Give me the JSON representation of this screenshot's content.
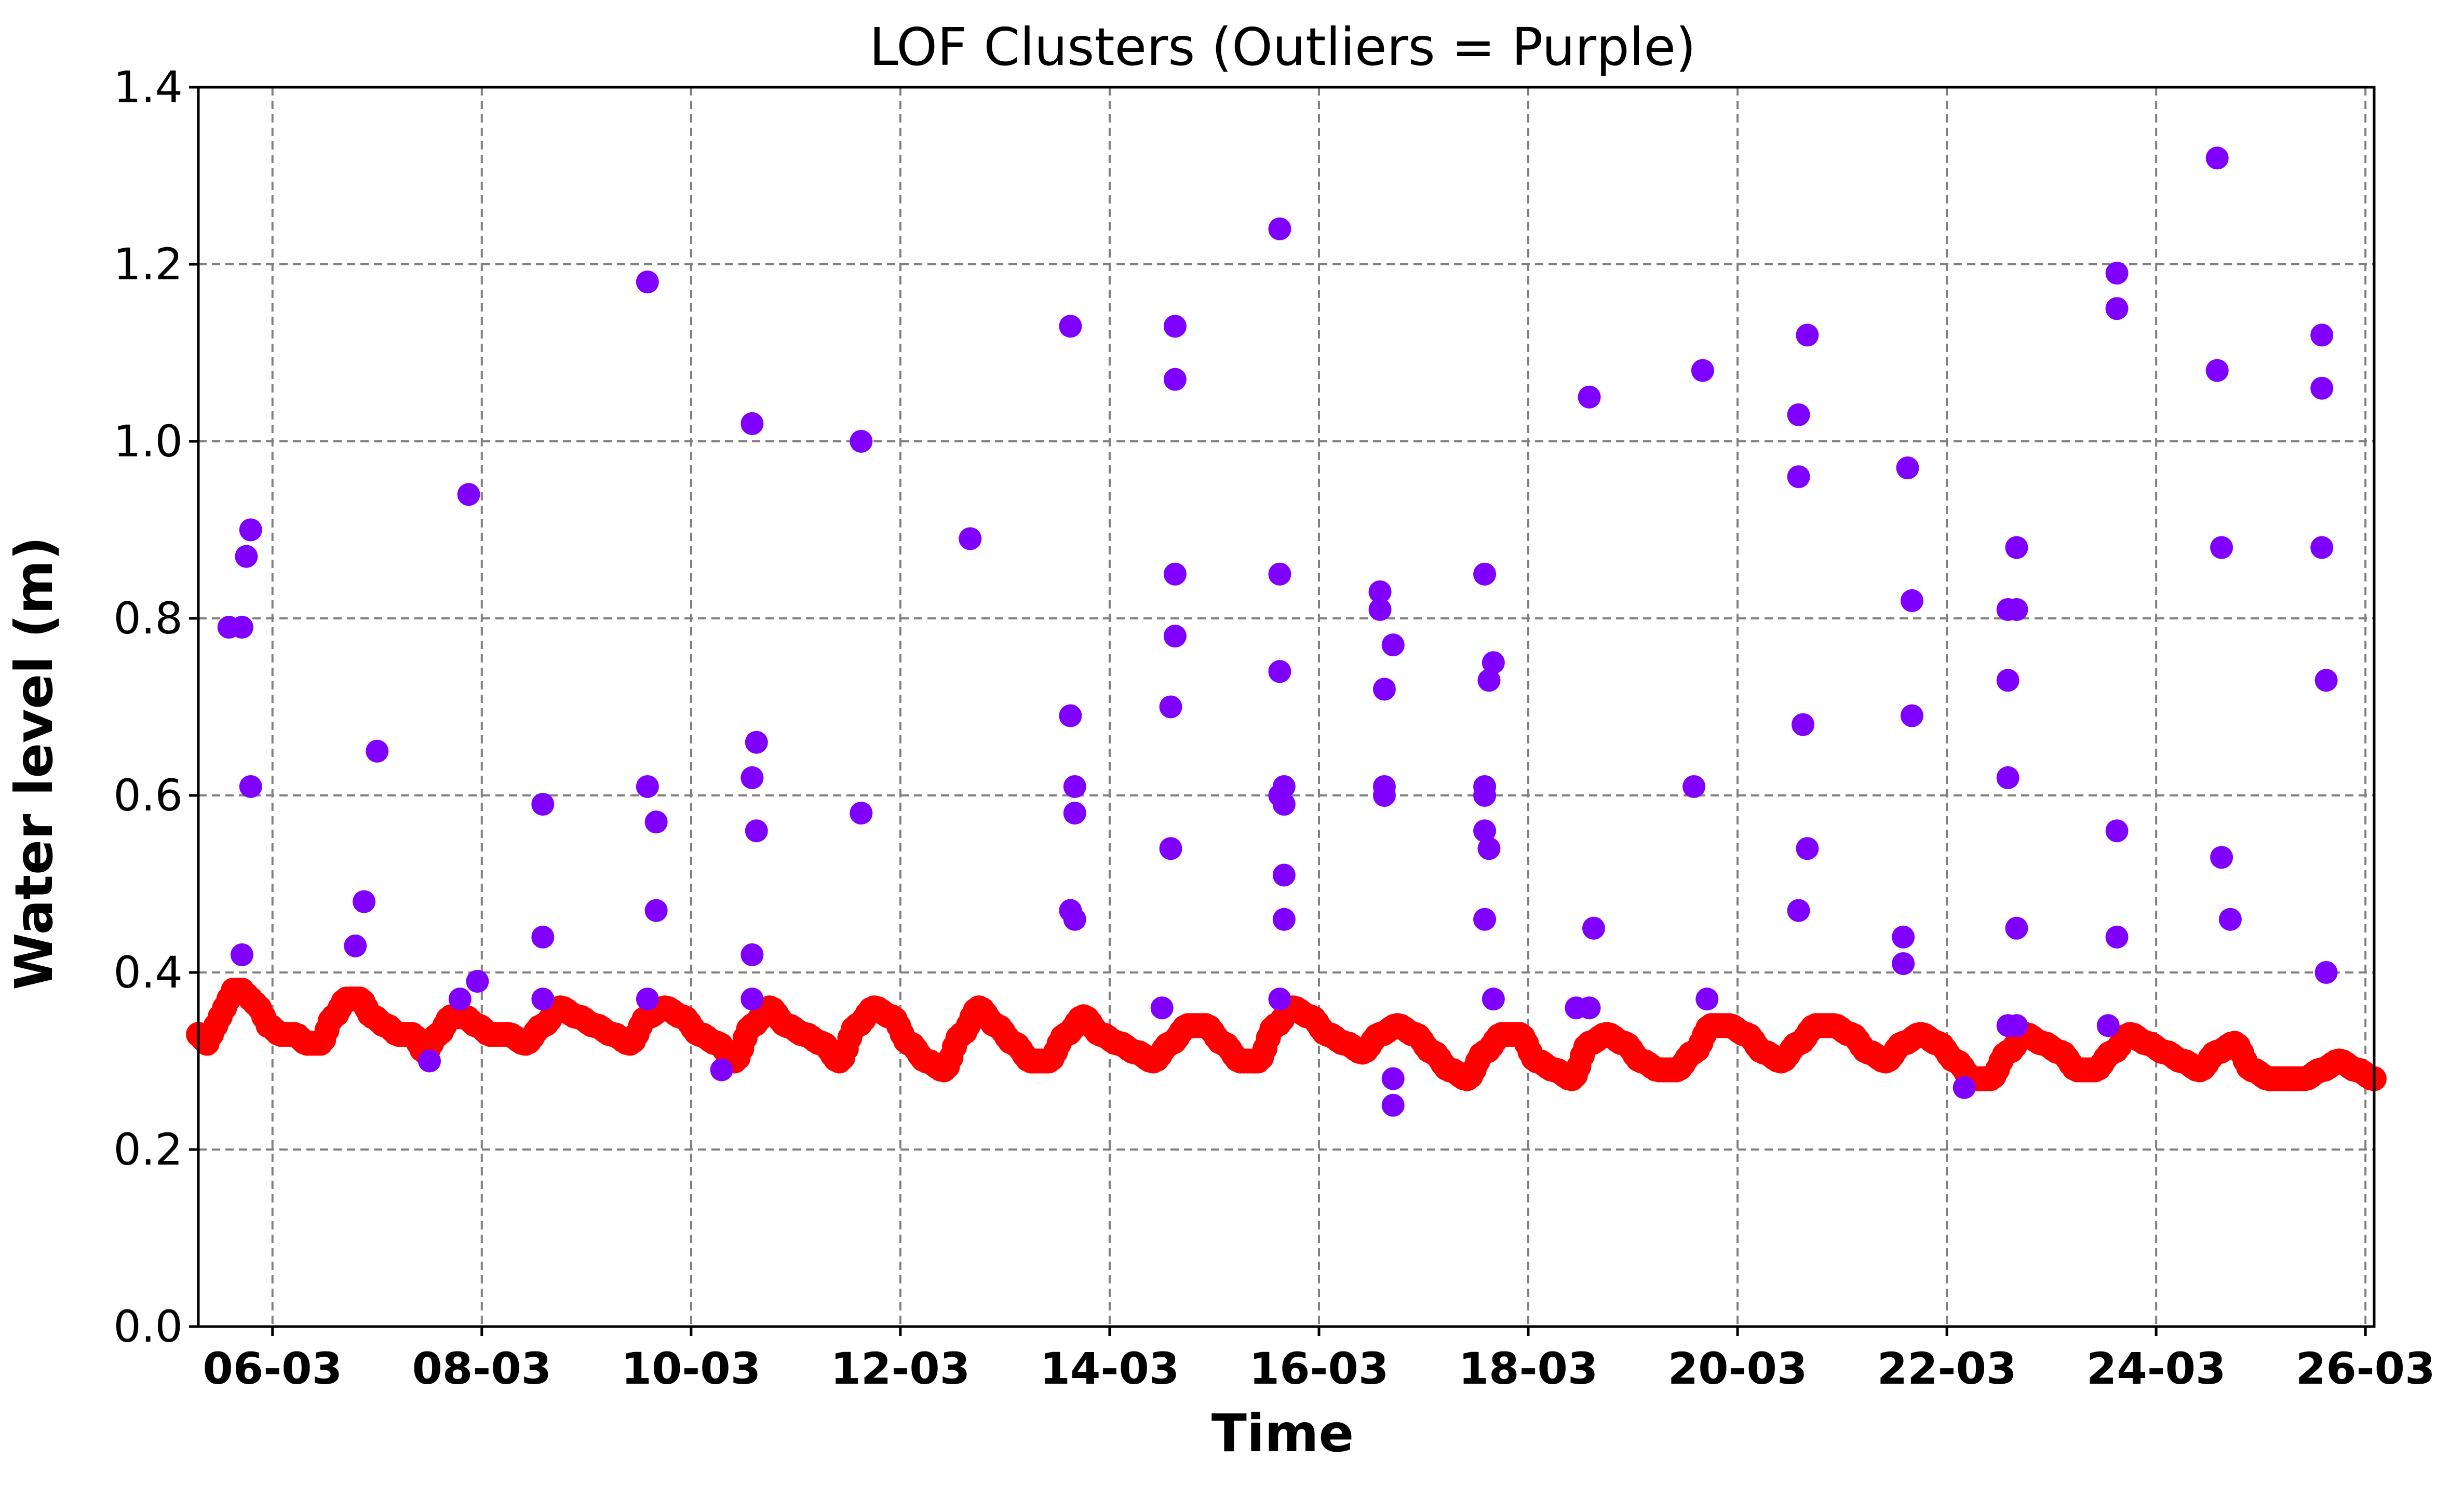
{
  "chart_data": {
    "type": "scatter",
    "title": "LOF Clusters (Outliers = Purple)",
    "xlabel": "Time",
    "ylabel": "Water level (m)",
    "x_type": "date",
    "xlim": [
      "2025-03-05T07:00",
      "2025-03-26T02:00"
    ],
    "ylim": [
      0.0,
      1.4
    ],
    "yticks": [
      "0.0",
      "0.2",
      "0.4",
      "0.6",
      "0.8",
      "1.0",
      "1.2",
      "1.4"
    ],
    "xticks": [
      {
        "date": "2025-03-06",
        "label": "06-03"
      },
      {
        "date": "2025-03-08",
        "label": "08-03"
      },
      {
        "date": "2025-03-10",
        "label": "10-03"
      },
      {
        "date": "2025-03-12",
        "label": "12-03"
      },
      {
        "date": "2025-03-14",
        "label": "14-03"
      },
      {
        "date": "2025-03-16",
        "label": "16-03"
      },
      {
        "date": "2025-03-18",
        "label": "18-03"
      },
      {
        "date": "2025-03-20",
        "label": "20-03"
      },
      {
        "date": "2025-03-22",
        "label": "22-03"
      },
      {
        "date": "2025-03-24",
        "label": "24-03"
      },
      {
        "date": "2025-03-26",
        "label": "26-03"
      }
    ],
    "grid": true,
    "colors": {
      "inliers": "#ff0000",
      "outliers": "#7f00ff"
    },
    "series": [
      {
        "role": "inliers",
        "points": [
          [
            "2025-03-05T07:00",
            0.33
          ],
          [
            "2025-03-05T09:00",
            0.32
          ],
          [
            "2025-03-05T11:00",
            0.34
          ],
          [
            "2025-03-05T13:00",
            0.36
          ],
          [
            "2025-03-05T15:00",
            0.38
          ],
          [
            "2025-03-05T17:00",
            0.38
          ],
          [
            "2025-03-05T19:00",
            0.37
          ],
          [
            "2025-03-05T21:00",
            0.36
          ],
          [
            "2025-03-05T23:00",
            0.34
          ],
          [
            "2025-03-06T02:00",
            0.33
          ],
          [
            "2025-03-06T05:00",
            0.33
          ],
          [
            "2025-03-06T08:00",
            0.32
          ],
          [
            "2025-03-06T11:00",
            0.32
          ],
          [
            "2025-03-06T14:00",
            0.35
          ],
          [
            "2025-03-06T17:00",
            0.37
          ],
          [
            "2025-03-06T20:00",
            0.37
          ],
          [
            "2025-03-06T23:00",
            0.35
          ],
          [
            "2025-03-07T02:00",
            0.34
          ],
          [
            "2025-03-07T05:00",
            0.33
          ],
          [
            "2025-03-07T08:00",
            0.33
          ],
          [
            "2025-03-07T11:00",
            0.31
          ],
          [
            "2025-03-07T14:00",
            0.33
          ],
          [
            "2025-03-07T17:00",
            0.35
          ],
          [
            "2025-03-07T20:00",
            0.35
          ],
          [
            "2025-03-07T23:00",
            0.34
          ],
          [
            "2025-03-08T02:00",
            0.33
          ],
          [
            "2025-03-08T06:00",
            0.33
          ],
          [
            "2025-03-08T10:00",
            0.32
          ],
          [
            "2025-03-08T14:00",
            0.34
          ],
          [
            "2025-03-08T18:00",
            0.36
          ],
          [
            "2025-03-08T22:00",
            0.35
          ],
          [
            "2025-03-09T02:00",
            0.34
          ],
          [
            "2025-03-09T06:00",
            0.33
          ],
          [
            "2025-03-09T10:00",
            0.32
          ],
          [
            "2025-03-09T14:00",
            0.35
          ],
          [
            "2025-03-09T18:00",
            0.36
          ],
          [
            "2025-03-09T22:00",
            0.35
          ],
          [
            "2025-03-10T02:00",
            0.33
          ],
          [
            "2025-03-10T06:00",
            0.32
          ],
          [
            "2025-03-10T10:00",
            0.3
          ],
          [
            "2025-03-10T14:00",
            0.34
          ],
          [
            "2025-03-10T18:00",
            0.36
          ],
          [
            "2025-03-10T22:00",
            0.34
          ],
          [
            "2025-03-11T02:00",
            0.33
          ],
          [
            "2025-03-11T06:00",
            0.32
          ],
          [
            "2025-03-11T10:00",
            0.3
          ],
          [
            "2025-03-11T14:00",
            0.34
          ],
          [
            "2025-03-11T18:00",
            0.36
          ],
          [
            "2025-03-11T22:00",
            0.35
          ],
          [
            "2025-03-12T02:00",
            0.32
          ],
          [
            "2025-03-12T06:00",
            0.3
          ],
          [
            "2025-03-12T10:00",
            0.29
          ],
          [
            "2025-03-12T14:00",
            0.33
          ],
          [
            "2025-03-12T18:00",
            0.36
          ],
          [
            "2025-03-12T22:00",
            0.34
          ],
          [
            "2025-03-13T02:00",
            0.32
          ],
          [
            "2025-03-13T06:00",
            0.3
          ],
          [
            "2025-03-13T10:00",
            0.3
          ],
          [
            "2025-03-13T14:00",
            0.33
          ],
          [
            "2025-03-13T18:00",
            0.35
          ],
          [
            "2025-03-13T22:00",
            0.33
          ],
          [
            "2025-03-14T02:00",
            0.32
          ],
          [
            "2025-03-14T06:00",
            0.31
          ],
          [
            "2025-03-14T10:00",
            0.3
          ],
          [
            "2025-03-14T14:00",
            0.32
          ],
          [
            "2025-03-14T18:00",
            0.34
          ],
          [
            "2025-03-14T22:00",
            0.34
          ],
          [
            "2025-03-15T02:00",
            0.32
          ],
          [
            "2025-03-15T06:00",
            0.3
          ],
          [
            "2025-03-15T10:00",
            0.3
          ],
          [
            "2025-03-15T14:00",
            0.34
          ],
          [
            "2025-03-15T18:00",
            0.36
          ],
          [
            "2025-03-15T22:00",
            0.35
          ],
          [
            "2025-03-16T02:00",
            0.33
          ],
          [
            "2025-03-16T06:00",
            0.32
          ],
          [
            "2025-03-16T10:00",
            0.31
          ],
          [
            "2025-03-16T14:00",
            0.33
          ],
          [
            "2025-03-16T18:00",
            0.34
          ],
          [
            "2025-03-16T22:00",
            0.33
          ],
          [
            "2025-03-17T02:00",
            0.31
          ],
          [
            "2025-03-17T06:00",
            0.29
          ],
          [
            "2025-03-17T10:00",
            0.28
          ],
          [
            "2025-03-17T14:00",
            0.31
          ],
          [
            "2025-03-17T18:00",
            0.33
          ],
          [
            "2025-03-17T22:00",
            0.33
          ],
          [
            "2025-03-18T02:00",
            0.3
          ],
          [
            "2025-03-18T06:00",
            0.29
          ],
          [
            "2025-03-18T10:00",
            0.28
          ],
          [
            "2025-03-18T14:00",
            0.32
          ],
          [
            "2025-03-18T18:00",
            0.33
          ],
          [
            "2025-03-18T22:00",
            0.32
          ],
          [
            "2025-03-19T02:00",
            0.3
          ],
          [
            "2025-03-19T06:00",
            0.29
          ],
          [
            "2025-03-19T10:00",
            0.29
          ],
          [
            "2025-03-19T14:00",
            0.31
          ],
          [
            "2025-03-19T18:00",
            0.34
          ],
          [
            "2025-03-19T22:00",
            0.34
          ],
          [
            "2025-03-20T02:00",
            0.33
          ],
          [
            "2025-03-20T06:00",
            0.31
          ],
          [
            "2025-03-20T10:00",
            0.3
          ],
          [
            "2025-03-20T14:00",
            0.32
          ],
          [
            "2025-03-20T18:00",
            0.34
          ],
          [
            "2025-03-20T22:00",
            0.34
          ],
          [
            "2025-03-21T02:00",
            0.33
          ],
          [
            "2025-03-21T06:00",
            0.31
          ],
          [
            "2025-03-21T10:00",
            0.3
          ],
          [
            "2025-03-21T14:00",
            0.32
          ],
          [
            "2025-03-21T18:00",
            0.33
          ],
          [
            "2025-03-21T22:00",
            0.32
          ],
          [
            "2025-03-22T02:00",
            0.3
          ],
          [
            "2025-03-22T06:00",
            0.28
          ],
          [
            "2025-03-22T10:00",
            0.28
          ],
          [
            "2025-03-22T14:00",
            0.31
          ],
          [
            "2025-03-22T18:00",
            0.33
          ],
          [
            "2025-03-22T22:00",
            0.32
          ],
          [
            "2025-03-23T02:00",
            0.31
          ],
          [
            "2025-03-23T06:00",
            0.29
          ],
          [
            "2025-03-23T10:00",
            0.29
          ],
          [
            "2025-03-23T14:00",
            0.31
          ],
          [
            "2025-03-23T18:00",
            0.33
          ],
          [
            "2025-03-23T22:00",
            0.32
          ],
          [
            "2025-03-24T02:00",
            0.31
          ],
          [
            "2025-03-24T06:00",
            0.3
          ],
          [
            "2025-03-24T10:00",
            0.29
          ],
          [
            "2025-03-24T14:00",
            0.31
          ],
          [
            "2025-03-24T18:00",
            0.32
          ],
          [
            "2025-03-24T22:00",
            0.29
          ],
          [
            "2025-03-25T02:00",
            0.28
          ],
          [
            "2025-03-25T06:00",
            0.28
          ],
          [
            "2025-03-25T10:00",
            0.28
          ],
          [
            "2025-03-25T14:00",
            0.29
          ],
          [
            "2025-03-25T18:00",
            0.3
          ],
          [
            "2025-03-25T22:00",
            0.29
          ],
          [
            "2025-03-26T02:00",
            0.28
          ]
        ]
      },
      {
        "role": "outliers",
        "points": [
          [
            "2025-03-05T14:00",
            0.79
          ],
          [
            "2025-03-05T17:00",
            0.79
          ],
          [
            "2025-03-05T17:00",
            0.42
          ],
          [
            "2025-03-05T18:00",
            0.87
          ],
          [
            "2025-03-05T19:00",
            0.9
          ],
          [
            "2025-03-05T19:00",
            0.61
          ],
          [
            "2025-03-06T19:00",
            0.43
          ],
          [
            "2025-03-06T21:00",
            0.48
          ],
          [
            "2025-03-07T00:00",
            0.65
          ],
          [
            "2025-03-07T12:00",
            0.3
          ],
          [
            "2025-03-07T19:00",
            0.37
          ],
          [
            "2025-03-07T21:00",
            0.94
          ],
          [
            "2025-03-07T23:00",
            0.39
          ],
          [
            "2025-03-08T14:00",
            0.59
          ],
          [
            "2025-03-08T14:00",
            0.44
          ],
          [
            "2025-03-08T14:00",
            0.37
          ],
          [
            "2025-03-09T14:00",
            1.18
          ],
          [
            "2025-03-09T14:00",
            0.61
          ],
          [
            "2025-03-09T14:00",
            0.37
          ],
          [
            "2025-03-09T16:00",
            0.57
          ],
          [
            "2025-03-09T16:00",
            0.47
          ],
          [
            "2025-03-10T07:00",
            0.29
          ],
          [
            "2025-03-10T14:00",
            1.02
          ],
          [
            "2025-03-10T14:00",
            0.62
          ],
          [
            "2025-03-10T15:00",
            0.66
          ],
          [
            "2025-03-10T15:00",
            0.56
          ],
          [
            "2025-03-10T14:00",
            0.42
          ],
          [
            "2025-03-10T14:00",
            0.37
          ],
          [
            "2025-03-11T15:00",
            1.0
          ],
          [
            "2025-03-11T15:00",
            0.58
          ],
          [
            "2025-03-12T16:00",
            0.89
          ],
          [
            "2025-03-13T15:00",
            1.13
          ],
          [
            "2025-03-13T15:00",
            0.69
          ],
          [
            "2025-03-13T16:00",
            0.61
          ],
          [
            "2025-03-13T16:00",
            0.58
          ],
          [
            "2025-03-13T15:00",
            0.47
          ],
          [
            "2025-03-13T16:00",
            0.46
          ],
          [
            "2025-03-14T12:00",
            0.36
          ],
          [
            "2025-03-14T14:00",
            0.7
          ],
          [
            "2025-03-14T14:00",
            0.54
          ],
          [
            "2025-03-14T15:00",
            1.13
          ],
          [
            "2025-03-14T15:00",
            1.07
          ],
          [
            "2025-03-14T15:00",
            0.85
          ],
          [
            "2025-03-14T15:00",
            0.78
          ],
          [
            "2025-03-15T15:00",
            1.24
          ],
          [
            "2025-03-15T15:00",
            0.85
          ],
          [
            "2025-03-15T15:00",
            0.74
          ],
          [
            "2025-03-15T15:00",
            0.6
          ],
          [
            "2025-03-15T16:00",
            0.61
          ],
          [
            "2025-03-15T16:00",
            0.59
          ],
          [
            "2025-03-15T16:00",
            0.51
          ],
          [
            "2025-03-15T16:00",
            0.46
          ],
          [
            "2025-03-15T15:00",
            0.37
          ],
          [
            "2025-03-16T14:00",
            0.83
          ],
          [
            "2025-03-16T14:00",
            0.81
          ],
          [
            "2025-03-16T15:00",
            0.72
          ],
          [
            "2025-03-16T15:00",
            0.61
          ],
          [
            "2025-03-16T15:00",
            0.6
          ],
          [
            "2025-03-16T17:00",
            0.77
          ],
          [
            "2025-03-16T17:00",
            0.28
          ],
          [
            "2025-03-16T17:00",
            0.25
          ],
          [
            "2025-03-17T14:00",
            0.85
          ],
          [
            "2025-03-17T14:00",
            0.61
          ],
          [
            "2025-03-17T14:00",
            0.6
          ],
          [
            "2025-03-17T14:00",
            0.56
          ],
          [
            "2025-03-17T15:00",
            0.73
          ],
          [
            "2025-03-17T15:00",
            0.54
          ],
          [
            "2025-03-17T14:00",
            0.46
          ],
          [
            "2025-03-17T16:00",
            0.75
          ],
          [
            "2025-03-17T16:00",
            0.37
          ],
          [
            "2025-03-18T11:00",
            0.36
          ],
          [
            "2025-03-18T14:00",
            1.05
          ],
          [
            "2025-03-18T15:00",
            0.45
          ],
          [
            "2025-03-18T14:00",
            0.36
          ],
          [
            "2025-03-19T14:00",
            0.61
          ],
          [
            "2025-03-19T16:00",
            1.08
          ],
          [
            "2025-03-19T17:00",
            0.37
          ],
          [
            "2025-03-20T14:00",
            1.03
          ],
          [
            "2025-03-20T14:00",
            0.96
          ],
          [
            "2025-03-20T14:00",
            0.47
          ],
          [
            "2025-03-20T15:00",
            0.68
          ],
          [
            "2025-03-20T16:00",
            1.12
          ],
          [
            "2025-03-20T16:00",
            0.54
          ],
          [
            "2025-03-21T14:00",
            0.44
          ],
          [
            "2025-03-21T14:00",
            0.41
          ],
          [
            "2025-03-21T15:00",
            0.97
          ],
          [
            "2025-03-21T16:00",
            0.82
          ],
          [
            "2025-03-21T16:00",
            0.69
          ],
          [
            "2025-03-22T04:00",
            0.27
          ],
          [
            "2025-03-22T14:00",
            0.81
          ],
          [
            "2025-03-22T14:00",
            0.73
          ],
          [
            "2025-03-22T14:00",
            0.62
          ],
          [
            "2025-03-22T14:00",
            0.34
          ],
          [
            "2025-03-22T16:00",
            0.88
          ],
          [
            "2025-03-22T16:00",
            0.81
          ],
          [
            "2025-03-22T16:00",
            0.45
          ],
          [
            "2025-03-22T16:00",
            0.34
          ],
          [
            "2025-03-23T13:00",
            0.34
          ],
          [
            "2025-03-23T15:00",
            1.19
          ],
          [
            "2025-03-23T15:00",
            1.15
          ],
          [
            "2025-03-23T15:00",
            0.56
          ],
          [
            "2025-03-23T15:00",
            0.44
          ],
          [
            "2025-03-24T14:00",
            1.32
          ],
          [
            "2025-03-24T14:00",
            1.08
          ],
          [
            "2025-03-24T15:00",
            0.88
          ],
          [
            "2025-03-24T15:00",
            0.53
          ],
          [
            "2025-03-24T17:00",
            0.46
          ],
          [
            "2025-03-25T14:00",
            1.12
          ],
          [
            "2025-03-25T14:00",
            1.06
          ],
          [
            "2025-03-25T14:00",
            0.88
          ],
          [
            "2025-03-25T15:00",
            0.73
          ],
          [
            "2025-03-25T15:00",
            0.4
          ]
        ]
      }
    ]
  }
}
